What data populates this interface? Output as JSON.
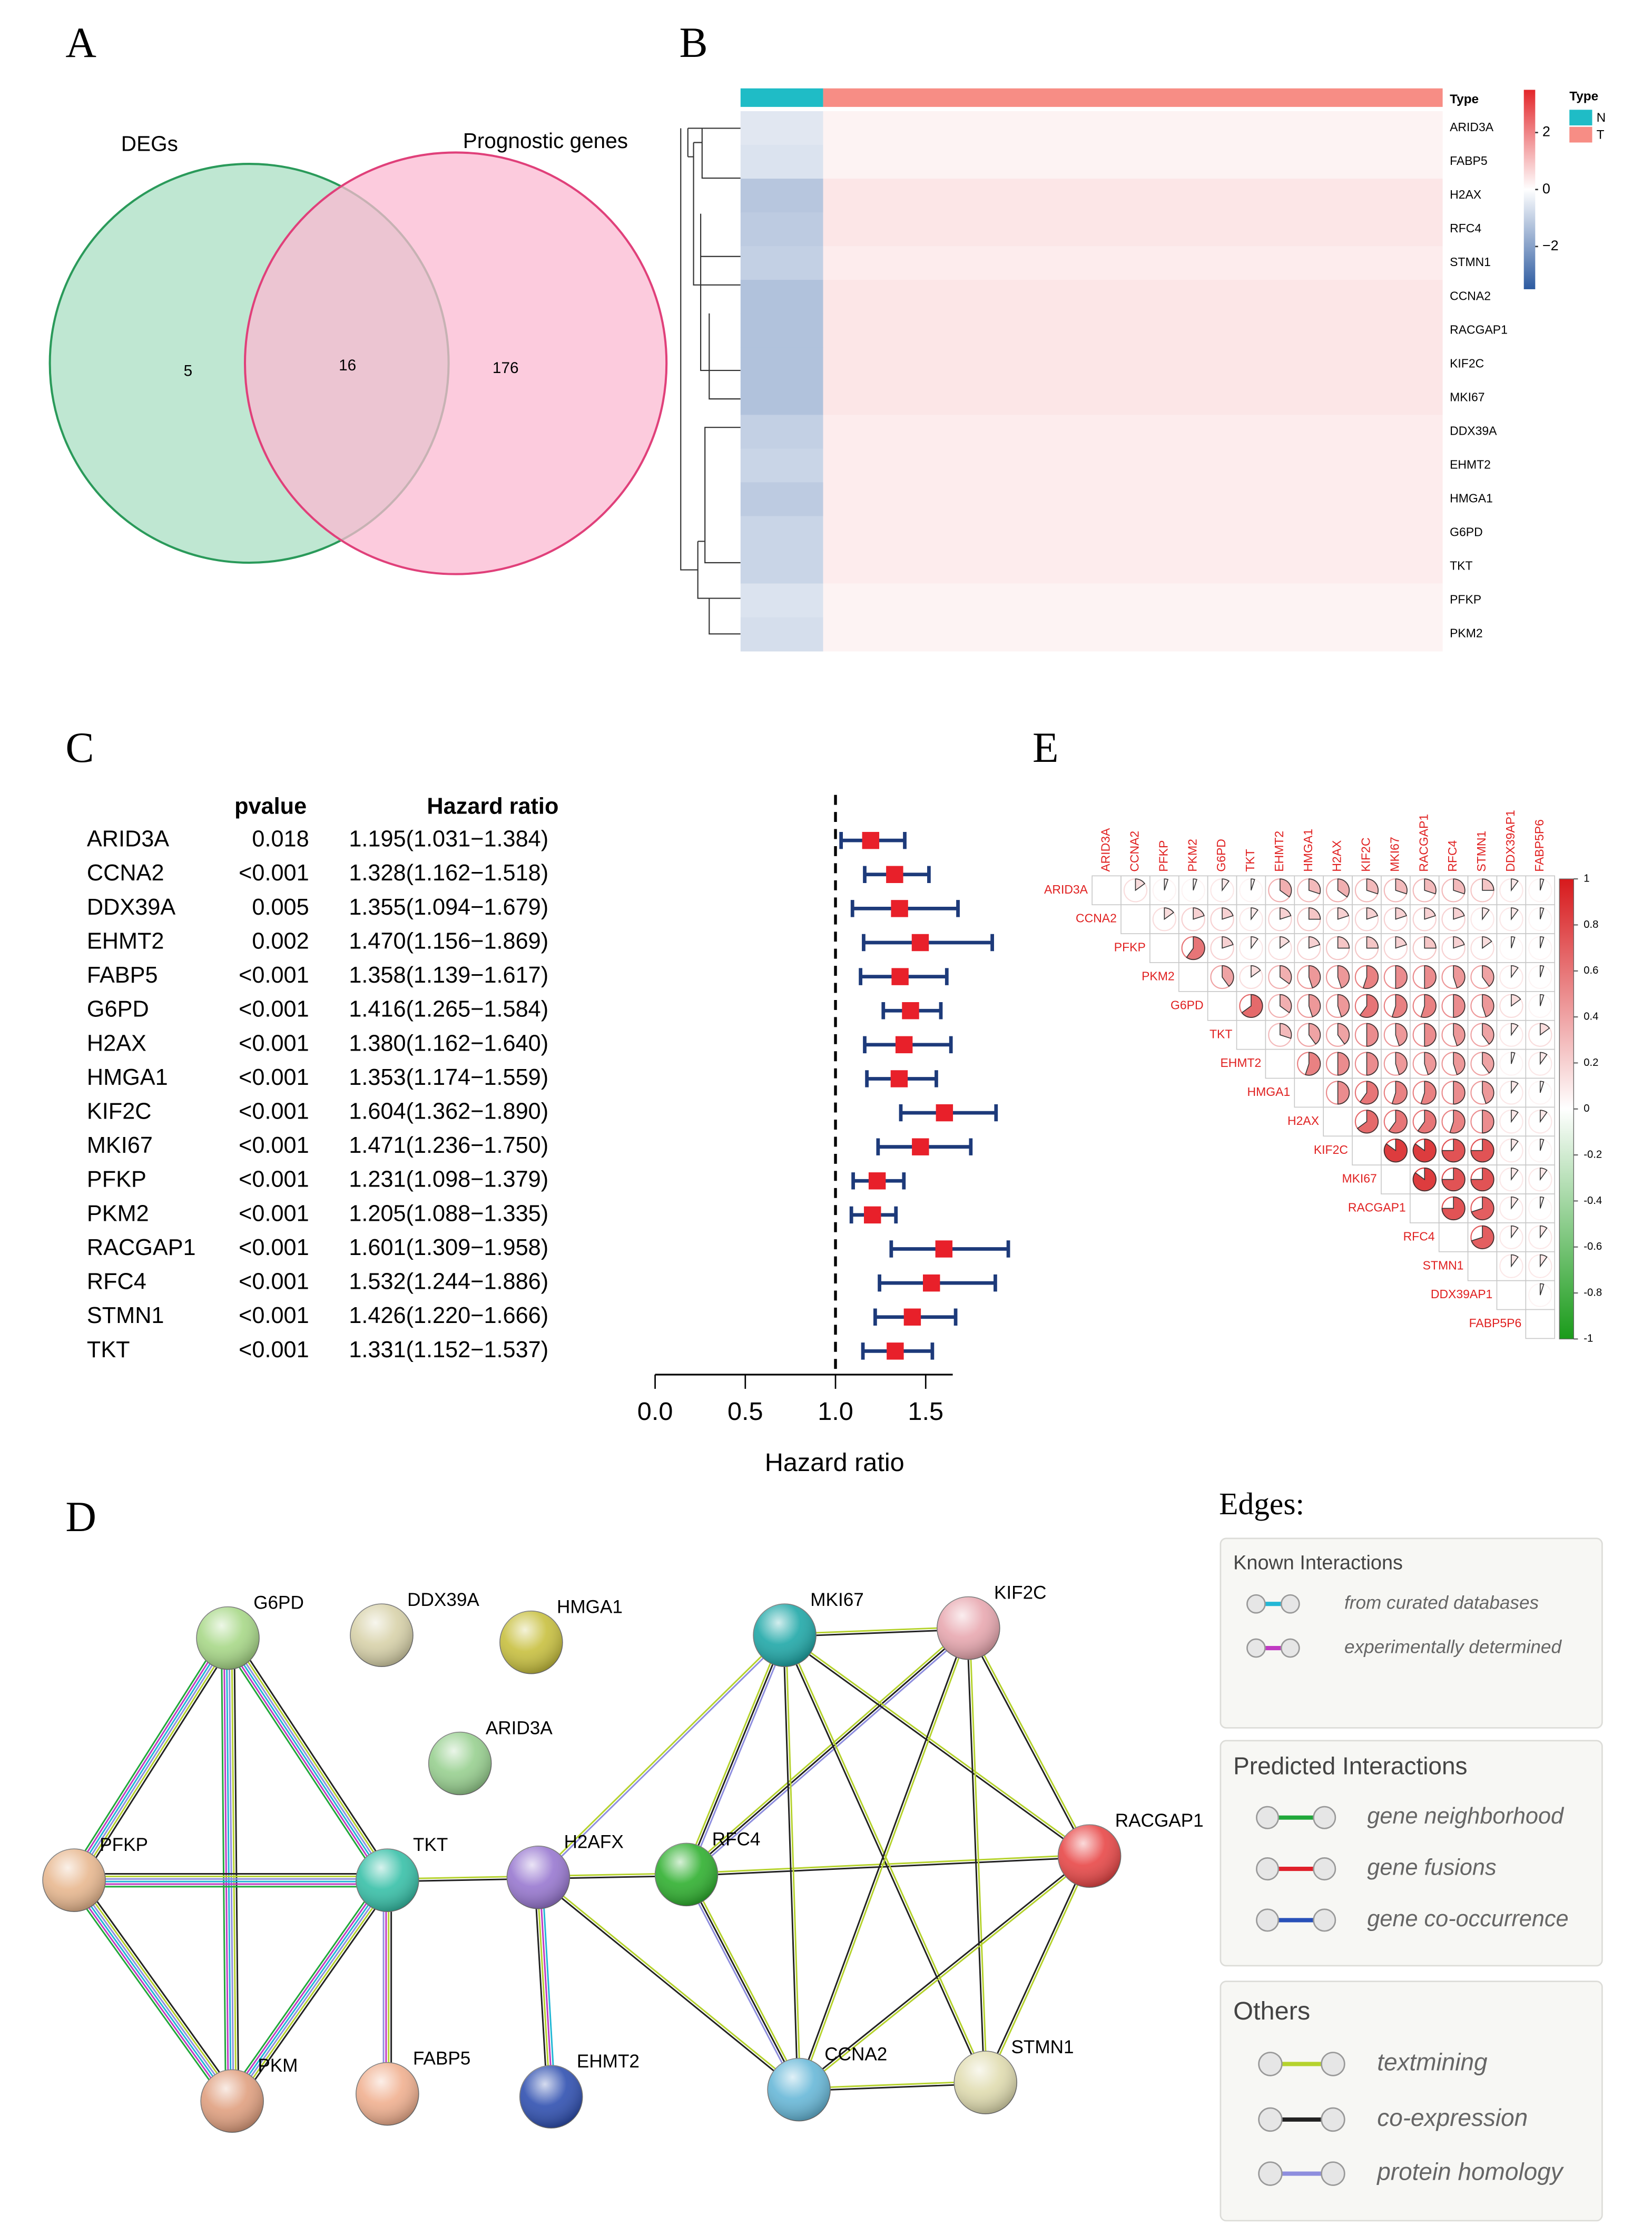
{
  "panel_labels": [
    "A",
    "B",
    "C",
    "D",
    "E"
  ],
  "chart_data": [
    {
      "type": "venn",
      "sets": [
        {
          "name": "DEGs",
          "color": "#a9dfc3"
        },
        {
          "name": "Prognostic genes",
          "color": "#fbbad2"
        }
      ],
      "values": [
        5,
        16,
        176
      ]
    },
    {
      "type": "heatmap",
      "annotation_label": "Type",
      "legend_title": "Type",
      "categories": [
        "ARID3A",
        "FABP5",
        "H2AX",
        "RFC4",
        "STMN1",
        "CCNA2",
        "RACGAP1",
        "KIF2C",
        "MKI67",
        "DDX39A",
        "EHMT2",
        "HMGA1",
        "G6PD",
        "TKT",
        "PFKP",
        "PKM2"
      ],
      "series": [
        {
          "name": "N",
          "color": "#1fbcc6",
          "values": [
            -0.5,
            -0.6,
            -1.2,
            -1.1,
            -1.0,
            -1.3,
            -1.3,
            -1.3,
            -1.3,
            -1.0,
            -0.9,
            -1.1,
            -0.9,
            -0.9,
            -0.6,
            -0.7
          ]
        },
        {
          "name": "T",
          "color": "#f78d85",
          "values": [
            0.2,
            0.2,
            0.4,
            0.4,
            0.3,
            0.4,
            0.4,
            0.4,
            0.4,
            0.3,
            0.3,
            0.3,
            0.3,
            0.3,
            0.2,
            0.2
          ]
        }
      ],
      "ylim": [
        -3.5,
        3.5
      ],
      "yticks": [
        2,
        0,
        {
          "value": -2,
          "label": "−2"
        }
      ]
    },
    {
      "type": "forest",
      "column_headers": [
        "pvalue",
        "Hazard ratio"
      ],
      "x_label": "Hazard ratio",
      "categories": [
        "ARID3A",
        "CCNA2",
        "DDX39A",
        "EHMT2",
        "FABP5",
        "G6PD",
        "H2AX",
        "HMGA1",
        "KIF2C",
        "MKI67",
        "PFKP",
        "PKM2",
        "RACGAP1",
        "RFC4",
        "STMN1",
        "TKT"
      ],
      "pvalue_labels": [
        "0.018",
        "<0.001",
        "0.005",
        "0.002",
        "<0.001",
        "<0.001",
        "<0.001",
        "<0.001",
        "<0.001",
        "<0.001",
        "<0.001",
        "<0.001",
        "<0.001",
        "<0.001",
        "<0.001",
        "<0.001"
      ],
      "value_labels": [
        "1.195(1.031−1.384)",
        "1.328(1.162−1.518)",
        "1.355(1.094−1.679)",
        "1.470(1.156−1.869)",
        "1.358(1.139−1.617)",
        "1.416(1.265−1.584)",
        "1.380(1.162−1.640)",
        "1.353(1.174−1.559)",
        "1.604(1.362−1.890)",
        "1.471(1.236−1.750)",
        "1.231(1.098−1.379)",
        "1.205(1.088−1.335)",
        "1.601(1.309−1.958)",
        "1.532(1.244−1.886)",
        "1.426(1.220−1.666)",
        "1.331(1.152−1.537)"
      ],
      "values": [
        1.195,
        1.328,
        1.355,
        1.47,
        1.358,
        1.416,
        1.38,
        1.353,
        1.604,
        1.471,
        1.231,
        1.205,
        1.601,
        1.532,
        1.426,
        1.331
      ],
      "lower": [
        1.031,
        1.162,
        1.094,
        1.156,
        1.139,
        1.265,
        1.162,
        1.174,
        1.362,
        1.236,
        1.098,
        1.088,
        1.309,
        1.244,
        1.22,
        1.152
      ],
      "upper": [
        1.384,
        1.518,
        1.679,
        1.869,
        1.617,
        1.584,
        1.64,
        1.559,
        1.89,
        1.75,
        1.379,
        1.335,
        1.958,
        1.886,
        1.666,
        1.537
      ],
      "reference_line": 1,
      "point_color": "#e8202a",
      "ci_color": "#1d3a7a",
      "xlim": [
        0,
        1.65
      ],
      "xticks": [
        {
          "value": 0,
          "label": "0.0"
        },
        {
          "value": 0.5,
          "label": "0.5"
        },
        {
          "value": 1,
          "label": "1.0"
        },
        {
          "value": 1.5,
          "label": "1.5"
        }
      ]
    },
    {
      "type": "correlation",
      "categories": [
        "ARID3A",
        "CCNA2",
        "PFKP",
        "PKM2",
        "G6PD",
        "TKT",
        "EHMT2",
        "HMGA1",
        "H2AX",
        "KIF2C",
        "MKI67",
        "RACGAP1",
        "RFC4",
        "STMN1",
        "DDX39AP1",
        "FABP5P6"
      ],
      "values": [
        [
          0.15,
          0.05,
          0.05,
          0.1,
          0.05,
          0.35,
          0.3,
          0.35,
          0.3,
          0.3,
          0.3,
          0.3,
          0.25,
          0.1,
          0.05
        ],
        [
          0.15,
          0.2,
          0.2,
          0.1,
          0.2,
          0.25,
          0.2,
          0.2,
          0.2,
          0.2,
          0.2,
          0.1,
          0.1,
          0.05
        ],
        [
          0.6,
          0.2,
          0.1,
          0.15,
          0.2,
          0.25,
          0.25,
          0.2,
          0.25,
          0.2,
          0.15,
          0.05,
          0.05
        ],
        [
          0.4,
          0.15,
          0.35,
          0.45,
          0.45,
          0.55,
          0.5,
          0.5,
          0.45,
          0.4,
          0.1,
          0.05
        ],
        [
          0.65,
          0.35,
          0.45,
          0.45,
          0.6,
          0.55,
          0.55,
          0.5,
          0.45,
          0.15,
          0.05
        ],
        [
          0.3,
          0.4,
          0.4,
          0.5,
          0.45,
          0.5,
          0.45,
          0.4,
          0.1,
          0.15
        ],
        [
          0.55,
          0.5,
          0.5,
          0.45,
          0.45,
          0.45,
          0.4,
          0.05,
          0.1
        ],
        [
          0.5,
          0.6,
          0.55,
          0.55,
          0.5,
          0.45,
          0.1,
          0.05
        ],
        [
          0.65,
          0.6,
          0.6,
          0.55,
          0.5,
          0.1,
          0.1
        ],
        [
          0.85,
          0.85,
          0.75,
          0.75,
          0.1,
          0.05
        ],
        [
          0.85,
          0.75,
          0.75,
          0.1,
          0.1
        ],
        [
          0.75,
          0.7,
          0.1,
          0.05
        ],
        [
          0.7,
          0.1,
          0.1
        ],
        [
          0.1,
          0.1
        ],
        [
          0.05
        ]
      ],
      "ylim": [
        -1,
        1
      ],
      "yticks": [
        1,
        0.8,
        0.6,
        0.4,
        0.2,
        0,
        -0.2,
        -0.4,
        -0.6,
        -0.8,
        -1
      ]
    }
  ],
  "network": {
    "edges_title": "Edges:",
    "nodes": [
      {
        "label": "G6PD",
        "color": "#a8d888"
      },
      {
        "label": "DDX39A",
        "color": "#d8d2aa"
      },
      {
        "label": "HMGA1",
        "color": "#c8c040"
      },
      {
        "label": "ARID3A",
        "color": "#98d090"
      },
      {
        "label": "PFKP",
        "color": "#e8b890"
      },
      {
        "label": "TKT",
        "color": "#38c0a8"
      },
      {
        "label": "H2AFX",
        "color": "#9878d0"
      },
      {
        "label": "RFC4",
        "color": "#30b030"
      },
      {
        "label": "MKI67",
        "color": "#20a8a8"
      },
      {
        "label": "KIF2C",
        "color": "#e8a8b0"
      },
      {
        "label": "RACGAP1",
        "color": "#e84848"
      },
      {
        "label": "PKM",
        "color": "#e0a080"
      },
      {
        "label": "FABP5",
        "color": "#f0b090"
      },
      {
        "label": "EHMT2",
        "color": "#3050b0"
      },
      {
        "label": "CCNA2",
        "color": "#68b8d8"
      },
      {
        "label": "STMN1",
        "color": "#e0dcb0"
      }
    ],
    "legend": [
      {
        "title": "Known Interactions",
        "items": [
          {
            "label": "from curated databases",
            "color": "#23b7d5"
          },
          {
            "label": "experimentally determined",
            "color": "#c03ac2"
          }
        ]
      },
      {
        "title": "Predicted Interactions",
        "items": [
          {
            "label": "gene neighborhood",
            "color": "#20a83a"
          },
          {
            "label": "gene fusions",
            "color": "#e0202a"
          },
          {
            "label": "gene co-occurrence",
            "color": "#2850b8"
          }
        ]
      },
      {
        "title": "Others",
        "items": [
          {
            "label": "textmining",
            "color": "#b5d22d"
          },
          {
            "label": "co-expression",
            "color": "#222222"
          },
          {
            "label": "protein homology",
            "color": "#8e8ede"
          }
        ]
      }
    ]
  }
}
